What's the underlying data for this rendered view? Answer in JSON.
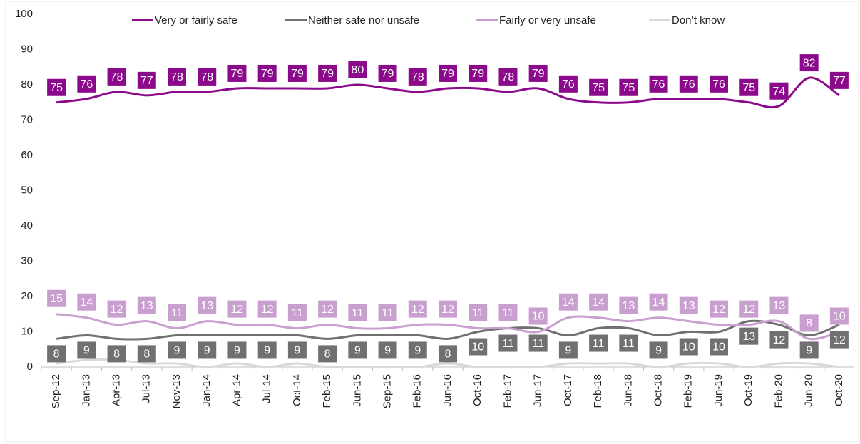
{
  "chart_data": {
    "type": "line",
    "categories": [
      "Sep-12",
      "Jan-13",
      "Apr-13",
      "Jul-13",
      "Nov-13",
      "Jan-14",
      "Apr-14",
      "Jul-14",
      "Oct-14",
      "Feb-15",
      "Jun-15",
      "Sep-15",
      "Feb-16",
      "Jun-16",
      "Oct-16",
      "Feb-17",
      "Jun-17",
      "Oct-17",
      "Feb-18",
      "Jun-18",
      "Oct-18",
      "Feb-19",
      "Jun-19",
      "Oct-19",
      "Feb-20",
      "Jun-20",
      "Oct-20"
    ],
    "series": [
      {
        "name": "Very or fairly safe",
        "color": "#8b0a8b",
        "values": [
          75,
          76,
          78,
          77,
          78,
          78,
          79,
          79,
          79,
          79,
          80,
          79,
          78,
          79,
          79,
          78,
          79,
          76,
          75,
          75,
          76,
          76,
          76,
          75,
          74,
          82,
          77
        ],
        "labeled": true
      },
      {
        "name": "Neither safe nor unsafe",
        "color": "#707070",
        "values": [
          8,
          9,
          8,
          8,
          9,
          9,
          9,
          9,
          9,
          8,
          9,
          9,
          9,
          8,
          10,
          11,
          11,
          9,
          11,
          11,
          9,
          10,
          10,
          13,
          12,
          9,
          12
        ],
        "labeled": true
      },
      {
        "name": "Fairly or very unsafe",
        "color": "#c89fcf",
        "values": [
          15,
          14,
          12,
          13,
          11,
          13,
          12,
          12,
          11,
          12,
          11,
          11,
          12,
          12,
          11,
          11,
          10,
          14,
          14,
          13,
          14,
          13,
          12,
          12,
          13,
          8,
          10
        ],
        "labeled": true
      },
      {
        "name": "Don’t know",
        "color": "#d9d9d9",
        "values": [
          1,
          2,
          2,
          1,
          1,
          0,
          1,
          0,
          1,
          0,
          0,
          0,
          0,
          1,
          0,
          0,
          0,
          1,
          1,
          1,
          0,
          1,
          1,
          0,
          1,
          1,
          0
        ],
        "labeled": false
      }
    ],
    "ylim": [
      0,
      100
    ],
    "yticks": [
      0,
      10,
      20,
      30,
      40,
      50,
      60,
      70,
      80,
      90,
      100
    ],
    "legend": "top"
  }
}
